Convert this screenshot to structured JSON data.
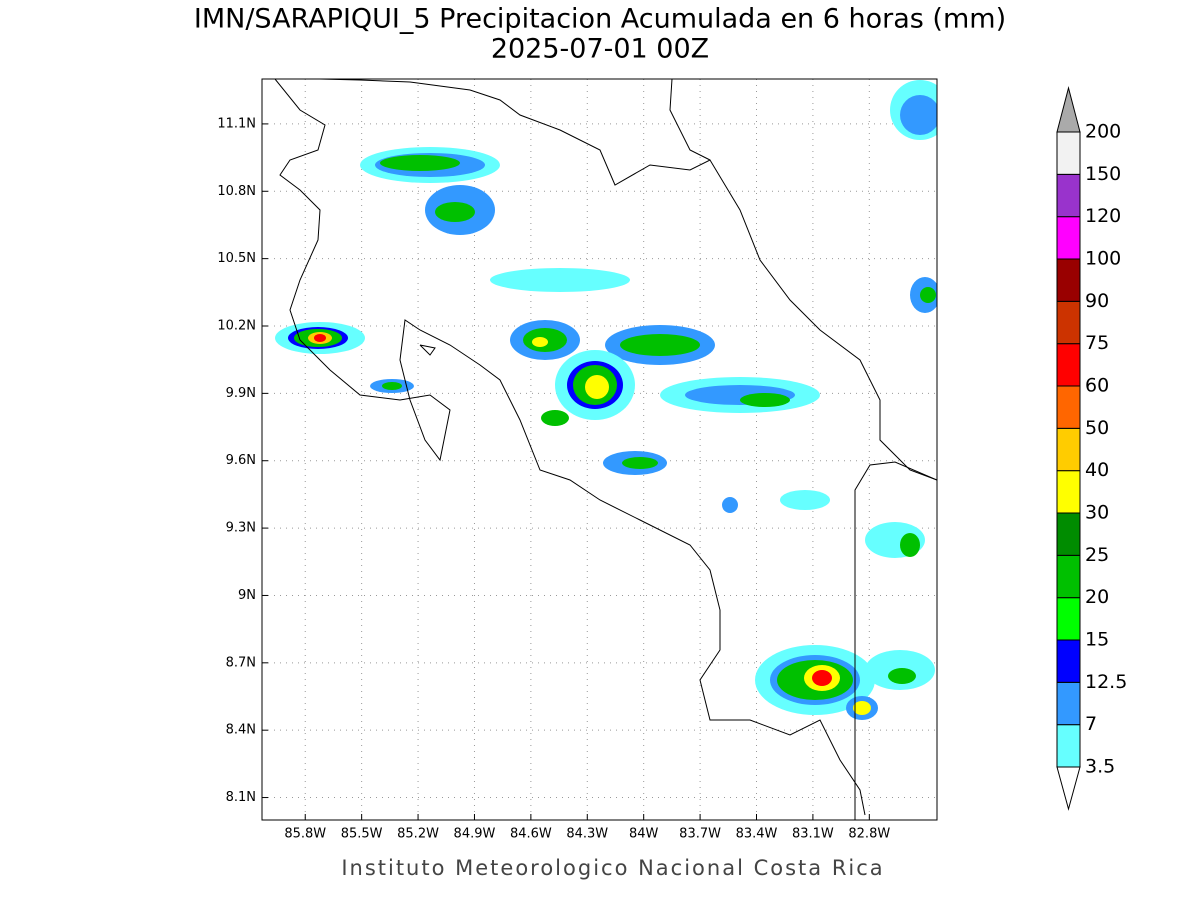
{
  "header": {
    "title": "IMN/SARAPIQUI_5 Precipitacion Acumulada en 6 horas (mm)",
    "subtitle": "2025-07-01 00Z"
  },
  "map": {
    "lonlim": [
      -86.03,
      -82.44
    ],
    "latlim": [
      8.0,
      11.3
    ],
    "grid": true,
    "lon_ticks": [
      {
        "value": -85.8,
        "label": "85.8W"
      },
      {
        "value": -85.5,
        "label": "85.5W"
      },
      {
        "value": -85.2,
        "label": "85.2W"
      },
      {
        "value": -84.9,
        "label": "84.9W"
      },
      {
        "value": -84.6,
        "label": "84.6W"
      },
      {
        "value": -84.3,
        "label": "84.3W"
      },
      {
        "value": -84.0,
        "label": "84W"
      },
      {
        "value": -83.7,
        "label": "83.7W"
      },
      {
        "value": -83.4,
        "label": "83.4W"
      },
      {
        "value": -83.1,
        "label": "83.1W"
      },
      {
        "value": -82.8,
        "label": "82.8W"
      }
    ],
    "lat_ticks": [
      {
        "value": 11.1,
        "label": "11.1N"
      },
      {
        "value": 10.8,
        "label": "10.8N"
      },
      {
        "value": 10.5,
        "label": "10.5N"
      },
      {
        "value": 10.2,
        "label": "10.2N"
      },
      {
        "value": 9.9,
        "label": "9.9N"
      },
      {
        "value": 9.6,
        "label": "9.6N"
      },
      {
        "value": 9.3,
        "label": "9.3N"
      },
      {
        "value": 9.0,
        "label": "9N"
      },
      {
        "value": 8.7,
        "label": "8.7N"
      },
      {
        "value": 8.4,
        "label": "8.4N"
      },
      {
        "value": 8.1,
        "label": "8.1N"
      }
    ]
  },
  "colorbar": {
    "levels": [
      3.5,
      7,
      12.5,
      15,
      20,
      25,
      30,
      40,
      50,
      60,
      75,
      90,
      100,
      120,
      150,
      200
    ],
    "colors": [
      "#66ffff",
      "#3399ff",
      "#0000ff",
      "#00ff00",
      "#00c000",
      "#008c00",
      "#ffff00",
      "#ffcc00",
      "#ff6600",
      "#ff0000",
      "#cc3300",
      "#990000",
      "#ff00ff",
      "#9933cc",
      "#f2f2f2"
    ],
    "under_color": "#ffffff",
    "over_color": "#aaaaaa"
  },
  "footer": "Instituto Meteorologico Nacional Costa Rica"
}
